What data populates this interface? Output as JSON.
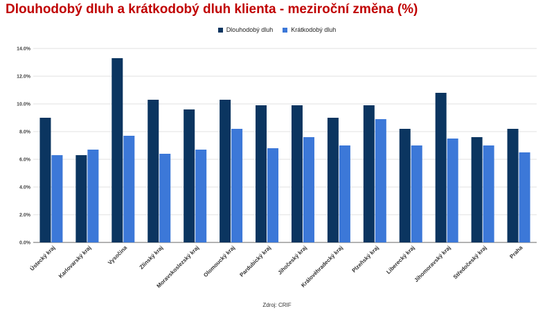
{
  "title": "Dlouhodobý dluh a krátkodobý dluh klienta - meziroční změna (%)",
  "source": "Zdroj: CRIF",
  "colors": {
    "title": "#c00000",
    "series1": "#0b3560",
    "series2": "#3c78d8",
    "grid": "#e0e0e0"
  },
  "chart_data": {
    "type": "bar",
    "categories": [
      "Ústecký kraj",
      "Karlovarský kraj",
      "Vysočina",
      "Zlínský kraj",
      "Moravskoslezský kraj",
      "Olomoucký kraj",
      "Pardubický kraj",
      "Jihočeský kraj",
      "Královéhradecký kraj",
      "Plzeňský kraj",
      "Liberecký kraj",
      "Jihomoravský kraj",
      "Středočeský kraj",
      "Praha"
    ],
    "series": [
      {
        "name": "Dlouhodobý dluh",
        "color": "#0b3560",
        "values": [
          9.0,
          6.3,
          13.3,
          10.3,
          9.6,
          10.3,
          9.9,
          9.9,
          9.0,
          9.9,
          8.2,
          10.8,
          7.6,
          8.2
        ]
      },
      {
        "name": "Krátkodobý dluh",
        "color": "#3c78d8",
        "values": [
          6.3,
          6.7,
          7.7,
          6.4,
          6.7,
          8.2,
          6.8,
          7.6,
          7.0,
          8.9,
          7.0,
          7.5,
          7.0,
          6.5
        ]
      }
    ],
    "yticks": [
      "0.0%",
      "2.0%",
      "4.0%",
      "6.0%",
      "8.0%",
      "10.0%",
      "12.0%",
      "14.0%"
    ],
    "ylim": [
      0,
      14
    ],
    "grid": true,
    "legend_position": "top-center"
  }
}
